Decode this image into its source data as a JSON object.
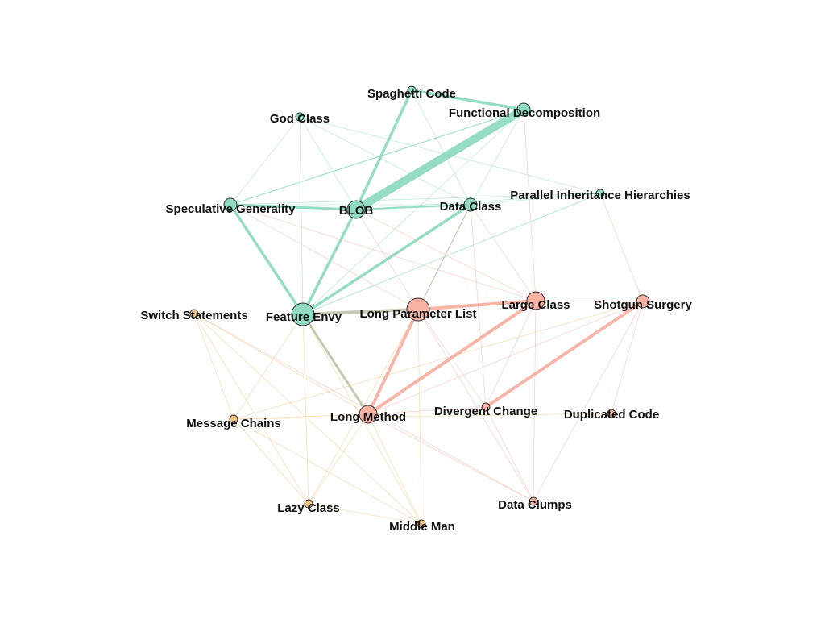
{
  "graph": {
    "colors": {
      "green": "#8fdcc0",
      "salmon": "#f7b2a4",
      "orange": "#f8c583",
      "mixed": "#c3c7ae"
    },
    "nodes": [
      {
        "id": "spaghetti",
        "label": "Spaghetti Code",
        "group": "green",
        "weight": 1
      },
      {
        "id": "funcdecomp",
        "label": "Functional Decomposition",
        "group": "green",
        "weight": 2
      },
      {
        "id": "godclass",
        "label": "God Class",
        "group": "green",
        "weight": 1
      },
      {
        "id": "specgen",
        "label": "Speculative Generality",
        "group": "green",
        "weight": 2
      },
      {
        "id": "blob",
        "label": "BLOB",
        "group": "green",
        "weight": 3
      },
      {
        "id": "dataclass",
        "label": "Data Class",
        "group": "green",
        "weight": 2
      },
      {
        "id": "parinh",
        "label": "Parallel Inheritance Hierarchies",
        "group": "green",
        "weight": 1
      },
      {
        "id": "featenvy",
        "label": "Feature Envy",
        "group": "green",
        "weight": 4
      },
      {
        "id": "switch",
        "label": "Switch Statements",
        "group": "orange",
        "weight": 1
      },
      {
        "id": "longparam",
        "label": "Long Parameter List",
        "group": "salmon",
        "weight": 4
      },
      {
        "id": "largeclass",
        "label": "Large Class",
        "group": "salmon",
        "weight": 3
      },
      {
        "id": "shotgun",
        "label": "Shotgun Surgery",
        "group": "salmon",
        "weight": 2
      },
      {
        "id": "msgchains",
        "label": "Message Chains",
        "group": "orange",
        "weight": 1
      },
      {
        "id": "longmethod",
        "label": "Long Method",
        "group": "salmon",
        "weight": 3
      },
      {
        "id": "divchange",
        "label": "Divergent Change",
        "group": "salmon",
        "weight": 1
      },
      {
        "id": "dupcode",
        "label": "Duplicated Code",
        "group": "salmon",
        "weight": 1
      },
      {
        "id": "lazyclass",
        "label": "Lazy Class",
        "group": "orange",
        "weight": 1
      },
      {
        "id": "dataclumps",
        "label": "Data Clumps",
        "group": "salmon",
        "weight": 1
      },
      {
        "id": "middleman",
        "label": "Middle Man",
        "group": "orange",
        "weight": 1
      }
    ],
    "edges": [
      {
        "s": "blob",
        "t": "funcdecomp",
        "w": 10,
        "c": "green"
      },
      {
        "s": "blob",
        "t": "spaghetti",
        "w": 3.5,
        "c": "green"
      },
      {
        "s": "spaghetti",
        "t": "funcdecomp",
        "w": 3.5,
        "c": "green"
      },
      {
        "s": "specgen",
        "t": "blob",
        "w": 3,
        "c": "green"
      },
      {
        "s": "specgen",
        "t": "featenvy",
        "w": 3.5,
        "c": "green"
      },
      {
        "s": "blob",
        "t": "featenvy",
        "w": 3.5,
        "c": "green"
      },
      {
        "s": "featenvy",
        "t": "dataclass",
        "w": 3.5,
        "c": "green"
      },
      {
        "s": "blob",
        "t": "dataclass",
        "w": 2,
        "c": "green"
      },
      {
        "s": "specgen",
        "t": "funcdecomp",
        "w": 1,
        "c": "green"
      },
      {
        "s": "featenvy",
        "t": "longparam",
        "w": 4,
        "c": "mixed"
      },
      {
        "s": "featenvy",
        "t": "longmethod",
        "w": 3,
        "c": "mixed"
      },
      {
        "s": "longparam",
        "t": "largeclass",
        "w": 4,
        "c": "salmon"
      },
      {
        "s": "longparam",
        "t": "longmethod",
        "w": 4,
        "c": "salmon"
      },
      {
        "s": "longmethod",
        "t": "largeclass",
        "w": 4,
        "c": "salmon"
      },
      {
        "s": "divchange",
        "t": "shotgun",
        "w": 4,
        "c": "salmon"
      },
      {
        "s": "godclass",
        "t": "specgen",
        "w": 0.6,
        "c": "green"
      },
      {
        "s": "godclass",
        "t": "dataclass",
        "w": 0.6,
        "c": "green"
      },
      {
        "s": "godclass",
        "t": "featenvy",
        "w": 0.6,
        "c": "green"
      },
      {
        "s": "godclass",
        "t": "blob",
        "w": 0.6,
        "c": "green"
      },
      {
        "s": "godclass",
        "t": "parinh",
        "w": 0.6,
        "c": "green"
      },
      {
        "s": "specgen",
        "t": "parinh",
        "w": 0.6,
        "c": "green"
      },
      {
        "s": "blob",
        "t": "parinh",
        "w": 0.6,
        "c": "green"
      },
      {
        "s": "dataclass",
        "t": "parinh",
        "w": 0.6,
        "c": "green"
      },
      {
        "s": "featenvy",
        "t": "parinh",
        "w": 0.6,
        "c": "green"
      },
      {
        "s": "funcdecomp",
        "t": "featenvy",
        "w": 0.6,
        "c": "green"
      },
      {
        "s": "funcdecomp",
        "t": "dataclass",
        "w": 0.6,
        "c": "green"
      },
      {
        "s": "funcdecomp",
        "t": "largeclass",
        "w": 0.6,
        "c": "salmon"
      },
      {
        "s": "spaghetti",
        "t": "dataclass",
        "w": 0.6,
        "c": "green"
      },
      {
        "s": "specgen",
        "t": "dataclass",
        "w": 0.6,
        "c": "green"
      },
      {
        "s": "specgen",
        "t": "largeclass",
        "w": 0.6,
        "c": "salmon"
      },
      {
        "s": "specgen",
        "t": "longparam",
        "w": 0.6,
        "c": "salmon"
      },
      {
        "s": "blob",
        "t": "largeclass",
        "w": 0.6,
        "c": "salmon"
      },
      {
        "s": "blob",
        "t": "longparam",
        "w": 0.6,
        "c": "salmon"
      },
      {
        "s": "dataclass",
        "t": "longparam",
        "w": 1.2,
        "c": "mixed"
      },
      {
        "s": "dataclass",
        "t": "largeclass",
        "w": 0.6,
        "c": "salmon"
      },
      {
        "s": "dataclass",
        "t": "divchange",
        "w": 0.6,
        "c": "salmon"
      },
      {
        "s": "parinh",
        "t": "shotgun",
        "w": 0.6,
        "c": "salmon"
      },
      {
        "s": "parinh",
        "t": "featenvy",
        "w": 0.6,
        "c": "green"
      },
      {
        "s": "largeclass",
        "t": "divchange",
        "w": 0.6,
        "c": "salmon"
      },
      {
        "s": "largeclass",
        "t": "dataclumps",
        "w": 0.6,
        "c": "salmon"
      },
      {
        "s": "largeclass",
        "t": "shotgun",
        "w": 0.6,
        "c": "salmon"
      },
      {
        "s": "longparam",
        "t": "divchange",
        "w": 0.6,
        "c": "salmon"
      },
      {
        "s": "longparam",
        "t": "dataclumps",
        "w": 0.6,
        "c": "salmon"
      },
      {
        "s": "longparam",
        "t": "middleman",
        "w": 0.6,
        "c": "orange"
      },
      {
        "s": "shotgun",
        "t": "dupcode",
        "w": 0.6,
        "c": "salmon"
      },
      {
        "s": "shotgun",
        "t": "dataclumps",
        "w": 0.6,
        "c": "salmon"
      },
      {
        "s": "shotgun",
        "t": "longmethod",
        "w": 0.6,
        "c": "salmon"
      },
      {
        "s": "shotgun",
        "t": "msgchains",
        "w": 0.6,
        "c": "orange"
      },
      {
        "s": "longmethod",
        "t": "dataclumps",
        "w": 0.6,
        "c": "salmon"
      },
      {
        "s": "longmethod",
        "t": "divchange",
        "w": 0.6,
        "c": "salmon"
      },
      {
        "s": "longmethod",
        "t": "lazyclass",
        "w": 0.6,
        "c": "orange"
      },
      {
        "s": "longmethod",
        "t": "middleman",
        "w": 0.6,
        "c": "orange"
      },
      {
        "s": "longmethod",
        "t": "msgchains",
        "w": 0.6,
        "c": "orange"
      },
      {
        "s": "longmethod",
        "t": "switch",
        "w": 0.6,
        "c": "orange"
      },
      {
        "s": "divchange",
        "t": "dataclumps",
        "w": 0.6,
        "c": "salmon"
      },
      {
        "s": "featenvy",
        "t": "msgchains",
        "w": 0.6,
        "c": "orange"
      },
      {
        "s": "featenvy",
        "t": "lazyclass",
        "w": 0.6,
        "c": "orange"
      },
      {
        "s": "featenvy",
        "t": "middleman",
        "w": 0.6,
        "c": "orange"
      },
      {
        "s": "switch",
        "t": "msgchains",
        "w": 0.6,
        "c": "orange"
      },
      {
        "s": "switch",
        "t": "lazyclass",
        "w": 0.6,
        "c": "orange"
      },
      {
        "s": "switch",
        "t": "middleman",
        "w": 0.6,
        "c": "orange"
      },
      {
        "s": "switch",
        "t": "dataclumps",
        "w": 0.6,
        "c": "salmon"
      },
      {
        "s": "msgchains",
        "t": "lazyclass",
        "w": 0.6,
        "c": "orange"
      },
      {
        "s": "msgchains",
        "t": "middleman",
        "w": 0.6,
        "c": "orange"
      },
      {
        "s": "msgchains",
        "t": "dupcode",
        "w": 0.6,
        "c": "orange"
      },
      {
        "s": "lazyclass",
        "t": "middleman",
        "w": 0.6,
        "c": "orange"
      },
      {
        "s": "lazyclass",
        "t": "longparam",
        "w": 0.6,
        "c": "orange"
      }
    ]
  }
}
